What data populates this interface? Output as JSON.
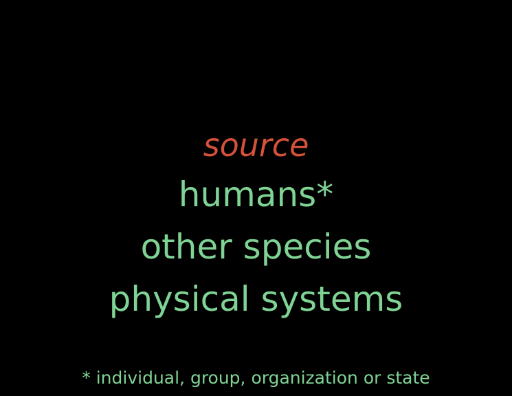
{
  "slide": {
    "heading": "source",
    "items": [
      "humans*",
      "other species",
      "physical systems"
    ],
    "footnote": "* individual, group, organization or state"
  },
  "colors": {
    "background": "#000000",
    "heading": "#d4513a",
    "text": "#7fd394"
  }
}
